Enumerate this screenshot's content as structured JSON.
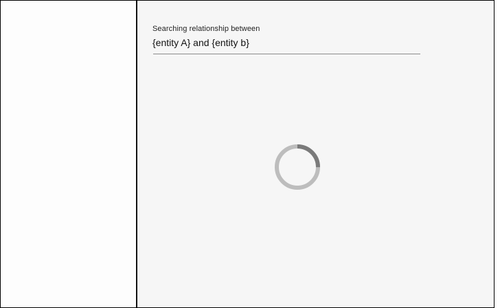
{
  "search": {
    "caption": "Searching relationship between",
    "query": "{entity A} and {entity b}"
  },
  "loading": {
    "icon": "spinner-icon",
    "progress": 0.25,
    "track_color": "#bdbdbd",
    "arc_color": "#7a7a7a"
  }
}
